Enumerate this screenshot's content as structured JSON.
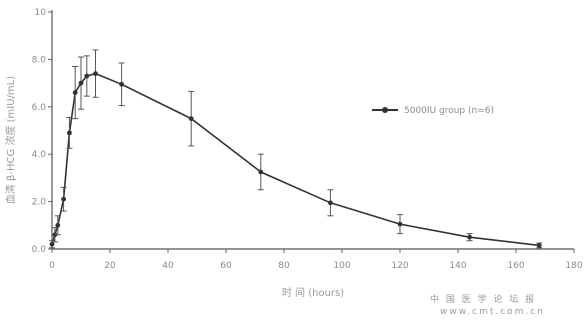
{
  "chart_data": {
    "type": "line",
    "xlabel": "时 间 (hours)",
    "ylabel": "血清 β-HCG 浓度 (mIU/mL)",
    "xlim": [
      0,
      180
    ],
    "ylim": [
      0,
      10
    ],
    "x_ticks": [
      "0",
      "20",
      "40",
      "60",
      "80",
      "100",
      "120",
      "140",
      "160",
      "180"
    ],
    "y_ticks": [
      "0.0",
      "2.0",
      "4.0",
      "6.0",
      "8.0",
      "10"
    ],
    "series": [
      {
        "name": "5000IU group (n=6)",
        "color": "#333333",
        "x": [
          0,
          1,
          2,
          4,
          6,
          8,
          10,
          12,
          15,
          24,
          48,
          72,
          96,
          120,
          144,
          168
        ],
        "y": [
          0.2,
          0.6,
          1.0,
          2.1,
          4.9,
          6.6,
          7.0,
          7.3,
          7.4,
          6.95,
          5.5,
          3.25,
          1.95,
          1.05,
          0.5,
          0.15
        ],
        "err": [
          0.15,
          0.3,
          0.4,
          0.5,
          0.65,
          1.1,
          1.1,
          0.85,
          1.0,
          0.9,
          1.15,
          0.75,
          0.55,
          0.4,
          0.15,
          0.1
        ]
      }
    ]
  },
  "watermark": {
    "line1": "中 国 医 学 论 坛 报",
    "line2": "www.cmt.com.cn"
  }
}
